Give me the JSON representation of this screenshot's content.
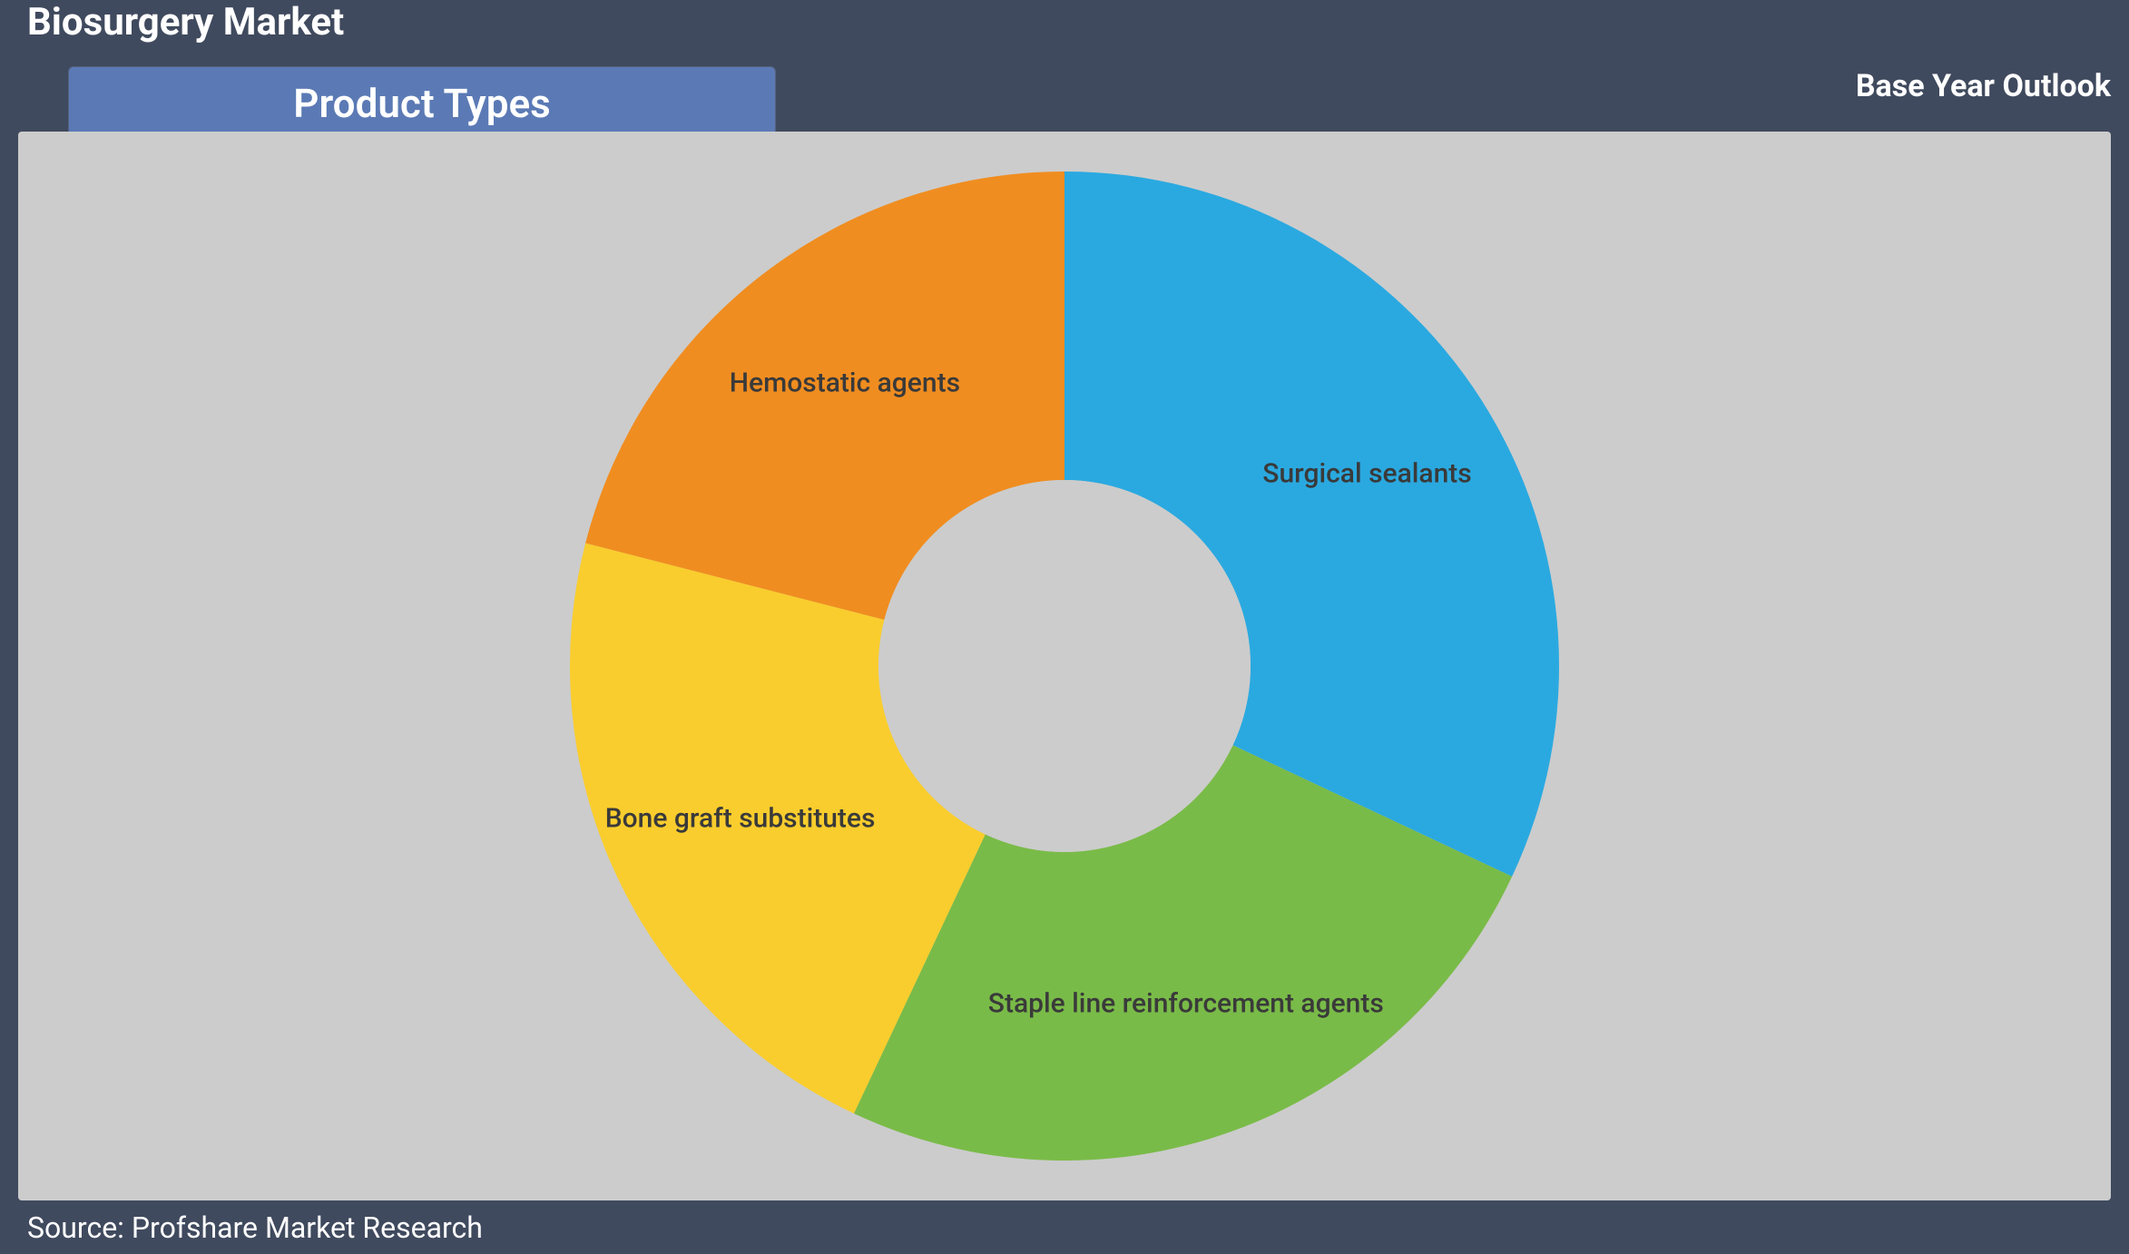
{
  "page_title": "Biosurgery Market",
  "subtitle_right": "Base Year Outlook",
  "tab_label": "Product Types",
  "source": "Source: Profshare Market Research",
  "chart": {
    "type": "donut",
    "background_color": "#cccccc",
    "hole_color": "#cccccc",
    "outer_radius": 545,
    "inner_radius": 205,
    "label_fontsize": 30,
    "label_color": "#3a3a3a",
    "slices": [
      {
        "label": "Surgical sealants",
        "value": 32,
        "color": "#2aa9e0"
      },
      {
        "label": "Staple line reinforcement agents",
        "value": 25,
        "color": "#79bb48"
      },
      {
        "label": "Bone graft substitutes",
        "value": 22,
        "color": "#f9cd2d"
      },
      {
        "label": "Hemostatic agents",
        "value": 21,
        "color": "#f08d20"
      }
    ]
  }
}
